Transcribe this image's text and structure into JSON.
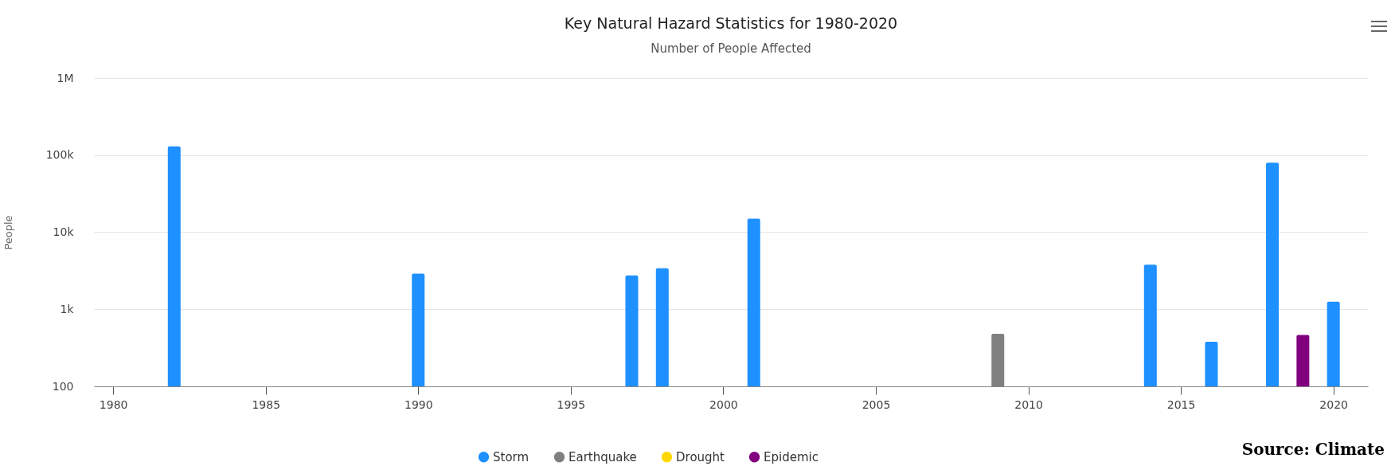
{
  "chart_data": {
    "type": "bar",
    "title": "Key Natural Hazard Statistics for 1980-2020",
    "subtitle": "Number of People Affected",
    "ylabel": "People",
    "log": "y",
    "grid": "y",
    "legend": "bottom",
    "xlim": [
      1979.5,
      2021
    ],
    "xticks": [
      1980,
      1985,
      1990,
      1995,
      2000,
      2005,
      2010,
      2015,
      2020
    ],
    "ylim": [
      100,
      1000000
    ],
    "yticks": [
      100,
      {
        "value": 1000,
        "label": "1k"
      },
      {
        "value": 10000,
        "label": "10k"
      },
      {
        "value": 100000,
        "label": "100k"
      },
      {
        "value": 1000000,
        "label": "1M"
      }
    ],
    "series": [
      {
        "name": "Storm",
        "color": "#1e90ff",
        "x": [
          1982,
          1990,
          1997,
          1998,
          2001,
          2014,
          2016,
          2018,
          2020
        ],
        "values": [
          130000,
          2900,
          2750,
          3400,
          15000,
          3800,
          380,
          80000,
          1250
        ]
      },
      {
        "name": "Earthquake",
        "color": "#808080",
        "x": [
          2009
        ],
        "values": [
          480
        ]
      },
      {
        "name": "Drought",
        "color": "#ffd700"
      },
      {
        "name": "Epidemic",
        "color": "#800080",
        "x": [
          2019
        ],
        "values": [
          465
        ]
      }
    ],
    "annotations": [
      "Source: Climate"
    ]
  }
}
